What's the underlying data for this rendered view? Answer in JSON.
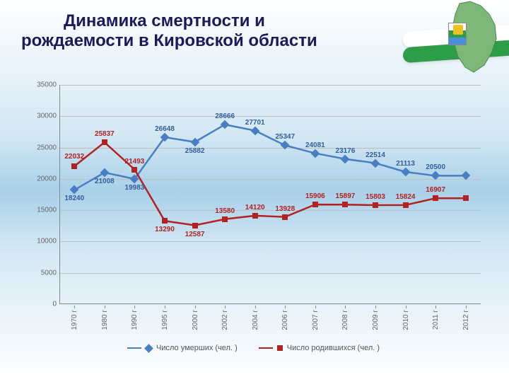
{
  "title_line1": "Динамика смертности и",
  "title_line2": "рождаемости в Кировской области",
  "chart": {
    "type": "line",
    "ylim": [
      0,
      35000
    ],
    "ytick_step": 5000,
    "yticks": [
      0,
      5000,
      10000,
      15000,
      20000,
      25000,
      30000,
      35000
    ],
    "categories": [
      "1970 г",
      "1980 г",
      "1990 г",
      "1995 г",
      "2000 г",
      "2002 г",
      "2004 г",
      "2006 г",
      "2007 г",
      "2008 г",
      "2009 г",
      "2010 г",
      "2011 г",
      "2012 г"
    ],
    "series": {
      "deaths": {
        "label": "Число умерших (чел. )",
        "color": "#4a7ec2",
        "line_width": 2.5,
        "marker": "diamond",
        "marker_size": 9,
        "values": [
          18240,
          21008,
          19983,
          26648,
          25882,
          28666,
          27701,
          25347,
          24081,
          23176,
          22514,
          21113,
          20500,
          20500
        ],
        "data_labels": [
          "18240",
          "21008",
          "19983",
          "26648",
          "25882",
          "28666",
          "27701",
          "25347",
          "24081",
          "23176",
          "22514",
          "21113",
          "20500",
          ""
        ]
      },
      "births": {
        "label": "Число родившихся (чел. )",
        "color": "#b22222",
        "line_width": 2.5,
        "marker": "square",
        "marker_size": 8,
        "values": [
          22032,
          25837,
          21493,
          13290,
          12587,
          13580,
          14120,
          13928,
          15906,
          15897,
          15803,
          15824,
          16907,
          16907
        ],
        "data_labels": [
          "22032",
          "25837",
          "21493",
          "13290",
          "12587",
          "13580",
          "14120",
          "13928",
          "15906",
          "15897",
          "15803",
          "15824",
          "16907",
          ""
        ]
      }
    },
    "grid_color": "#bfbfbf",
    "axis_color": "#888888",
    "label_fontsize": 10,
    "datalabel_fontsize": 10
  },
  "legend": {
    "deaths": "Число умерших (чел. )",
    "births": "Число родившихся (чел. )"
  }
}
